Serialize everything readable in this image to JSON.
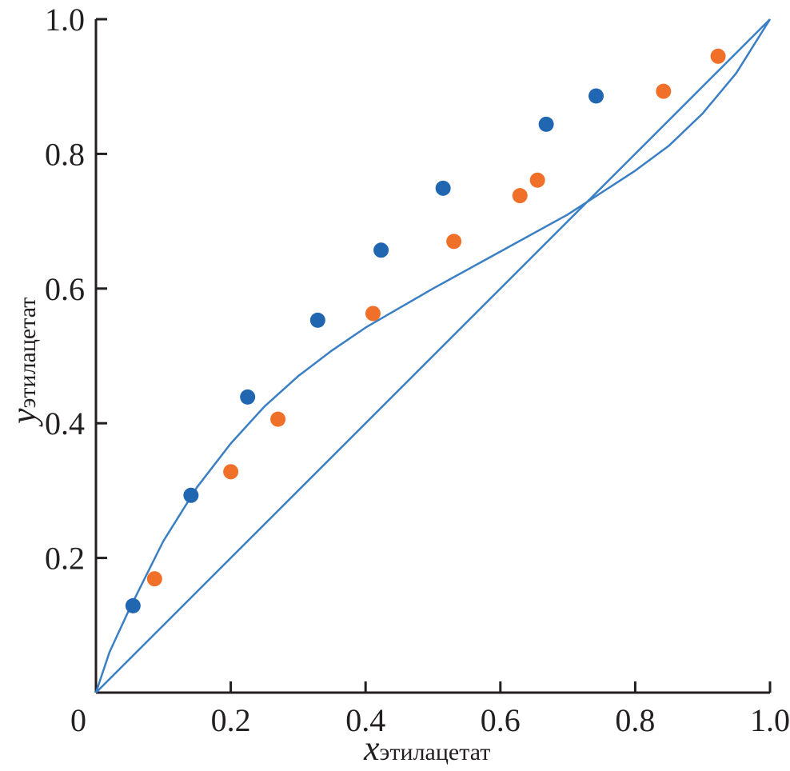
{
  "chart_data": {
    "type": "scatter",
    "title": "",
    "xlabel": {
      "main": "x",
      "sub": "этилацетат"
    },
    "ylabel": {
      "main": "y",
      "sub": "этилацетат"
    },
    "xlim": [
      0,
      1.0
    ],
    "ylim": [
      0,
      1.0
    ],
    "grid": false,
    "x_ticks": [
      "0",
      "0.2",
      "0.4",
      "0.6",
      "0.8",
      "1.0"
    ],
    "y_ticks": [
      "0.2",
      "0.4",
      "0.6",
      "0.8",
      "1.0"
    ],
    "colors": {
      "series1": "#2166b0",
      "series2": "#f07029",
      "line": "#3a7fc4",
      "axis": "#231f20"
    },
    "series": [
      {
        "name": "series1",
        "type": "scatter",
        "x": [
          0.055,
          0.141,
          0.225,
          0.329,
          0.423,
          0.515,
          0.668,
          0.742
        ],
        "y": [
          0.129,
          0.293,
          0.439,
          0.553,
          0.657,
          0.749,
          0.844,
          0.886
        ]
      },
      {
        "name": "series2",
        "type": "scatter",
        "x": [
          0.087,
          0.2,
          0.27,
          0.411,
          0.531,
          0.629,
          0.655,
          0.842,
          0.923
        ],
        "y": [
          0.169,
          0.328,
          0.406,
          0.563,
          0.67,
          0.738,
          0.761,
          0.893,
          0.945
        ]
      },
      {
        "name": "equilibrium-curve",
        "type": "line",
        "x": [
          0,
          0.02,
          0.05,
          0.1,
          0.15,
          0.2,
          0.25,
          0.3,
          0.35,
          0.4,
          0.5,
          0.6,
          0.7,
          0.8,
          0.85,
          0.9,
          0.95,
          1.0
        ],
        "y": [
          0,
          0.06,
          0.125,
          0.225,
          0.305,
          0.37,
          0.425,
          0.47,
          0.508,
          0.542,
          0.6,
          0.655,
          0.71,
          0.775,
          0.812,
          0.86,
          0.92,
          1.0
        ]
      },
      {
        "name": "diagonal",
        "type": "line",
        "x": [
          0,
          1.0
        ],
        "y": [
          0,
          1.0
        ]
      }
    ]
  }
}
